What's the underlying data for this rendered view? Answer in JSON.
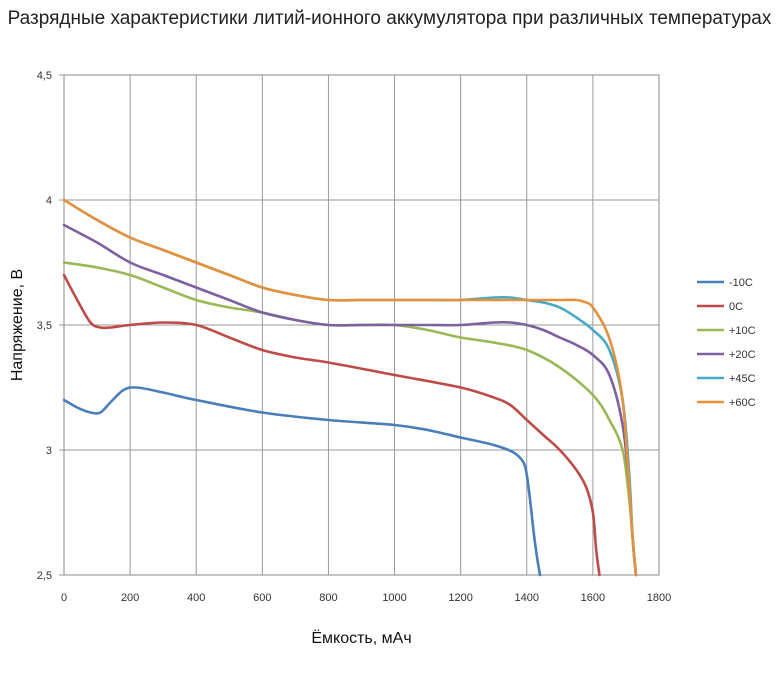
{
  "chart_data": {
    "type": "line",
    "title": "Разрядные характеристики литий-ионного аккумулятора при различных температурах",
    "xlabel": "Ёмкость, мАч",
    "ylabel": "Напряжение, В",
    "xlim": [
      0,
      1800
    ],
    "ylim": [
      2.5,
      4.5
    ],
    "x_ticks": [
      "0",
      "200",
      "400",
      "600",
      "800",
      "1000",
      "1200",
      "1400",
      "1600",
      "1800"
    ],
    "y_ticks": [
      "2,5",
      "3",
      "3,5",
      "4",
      "4,5"
    ],
    "grid": true,
    "legend_position": "right",
    "series": [
      {
        "name": "-10C",
        "color": "#4a7ebb",
        "x": [
          0,
          40,
          80,
          110,
          140,
          180,
          220,
          300,
          400,
          600,
          800,
          1000,
          1100,
          1200,
          1300,
          1360,
          1390,
          1400,
          1410,
          1420,
          1430,
          1440
        ],
        "y": [
          3.2,
          3.17,
          3.15,
          3.15,
          3.19,
          3.24,
          3.25,
          3.23,
          3.2,
          3.15,
          3.12,
          3.1,
          3.08,
          3.05,
          3.02,
          2.99,
          2.95,
          2.9,
          2.8,
          2.68,
          2.58,
          2.5
        ]
      },
      {
        "name": "0C",
        "color": "#be4b48",
        "x": [
          0,
          40,
          80,
          110,
          140,
          200,
          300,
          400,
          500,
          600,
          700,
          800,
          1000,
          1200,
          1300,
          1350,
          1400,
          1450,
          1500,
          1550,
          1580,
          1600,
          1610,
          1620
        ],
        "y": [
          3.7,
          3.6,
          3.51,
          3.49,
          3.49,
          3.5,
          3.51,
          3.5,
          3.45,
          3.4,
          3.37,
          3.35,
          3.3,
          3.25,
          3.21,
          3.18,
          3.12,
          3.06,
          3.0,
          2.92,
          2.85,
          2.75,
          2.6,
          2.5
        ]
      },
      {
        "name": "+10C",
        "color": "#98b954",
        "x": [
          0,
          100,
          200,
          300,
          400,
          500,
          600,
          700,
          800,
          900,
          1000,
          1100,
          1200,
          1300,
          1400,
          1500,
          1600,
          1650,
          1690,
          1710,
          1720,
          1730
        ],
        "y": [
          3.75,
          3.73,
          3.7,
          3.65,
          3.6,
          3.57,
          3.55,
          3.52,
          3.5,
          3.5,
          3.5,
          3.48,
          3.45,
          3.43,
          3.4,
          3.33,
          3.22,
          3.12,
          3.0,
          2.8,
          2.65,
          2.5
        ]
      },
      {
        "name": "+20C",
        "color": "#7d60a0",
        "x": [
          0,
          100,
          200,
          300,
          400,
          500,
          600,
          700,
          800,
          900,
          1000,
          1100,
          1200,
          1300,
          1350,
          1400,
          1450,
          1500,
          1550,
          1600,
          1650,
          1690,
          1710,
          1720,
          1730
        ],
        "y": [
          3.9,
          3.83,
          3.75,
          3.7,
          3.65,
          3.6,
          3.55,
          3.52,
          3.5,
          3.5,
          3.5,
          3.5,
          3.5,
          3.51,
          3.51,
          3.5,
          3.48,
          3.45,
          3.42,
          3.38,
          3.3,
          3.1,
          2.85,
          2.65,
          2.5
        ]
      },
      {
        "name": "+45C",
        "color": "#46aac5",
        "x": [
          0,
          100,
          200,
          300,
          400,
          500,
          600,
          700,
          800,
          900,
          1000,
          1100,
          1200,
          1300,
          1350,
          1400,
          1450,
          1500,
          1550,
          1600,
          1650,
          1690,
          1710,
          1720,
          1730
        ],
        "y": [
          4.0,
          3.92,
          3.85,
          3.8,
          3.75,
          3.7,
          3.65,
          3.62,
          3.6,
          3.6,
          3.6,
          3.6,
          3.6,
          3.61,
          3.61,
          3.6,
          3.59,
          3.57,
          3.53,
          3.48,
          3.4,
          3.2,
          2.9,
          2.65,
          2.5
        ]
      },
      {
        "name": "+60C",
        "color": "#e4913c",
        "x": [
          0,
          100,
          200,
          300,
          400,
          500,
          600,
          700,
          800,
          900,
          1000,
          1100,
          1200,
          1300,
          1400,
          1450,
          1500,
          1550,
          1580,
          1600,
          1640,
          1670,
          1690,
          1700,
          1710,
          1720,
          1730
        ],
        "y": [
          4.0,
          3.92,
          3.85,
          3.8,
          3.75,
          3.7,
          3.65,
          3.62,
          3.6,
          3.6,
          3.6,
          3.6,
          3.6,
          3.6,
          3.6,
          3.6,
          3.6,
          3.6,
          3.59,
          3.57,
          3.48,
          3.35,
          3.2,
          3.05,
          2.85,
          2.65,
          2.5
        ]
      }
    ]
  }
}
